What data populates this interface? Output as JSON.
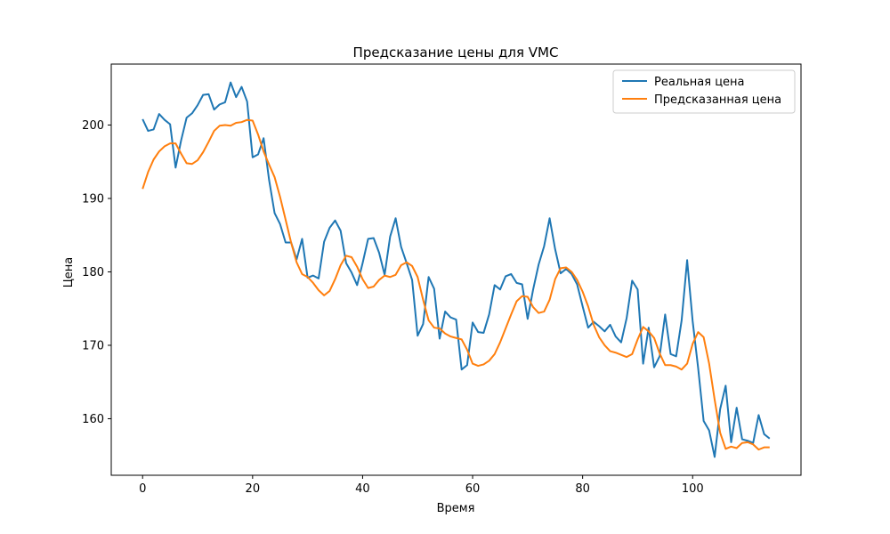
{
  "chart_data": {
    "type": "line",
    "title": "Предсказание цены для VMC",
    "xlabel": "Время",
    "ylabel": "Цена",
    "xlim": [
      -5.7,
      119.7
    ],
    "ylim": [
      152.3,
      208.3
    ],
    "xticks": [
      0,
      20,
      40,
      60,
      80,
      100
    ],
    "yticks": [
      160,
      170,
      180,
      190,
      200
    ],
    "grid": false,
    "legend_position": "top-right",
    "series": [
      {
        "name": "Реальная цена",
        "color": "#1f77b4",
        "values": [
          200.8,
          199.2,
          199.4,
          201.5,
          200.7,
          200.1,
          194.2,
          197.9,
          201.0,
          201.6,
          202.7,
          204.1,
          204.2,
          202.1,
          202.8,
          203.1,
          205.8,
          203.8,
          205.2,
          203.2,
          195.6,
          196.0,
          198.2,
          192.5,
          188.0,
          186.5,
          184.0,
          184.0,
          181.7,
          184.5,
          179.2,
          179.5,
          179.1,
          184.1,
          186.0,
          187.0,
          185.6,
          181.2,
          179.9,
          178.2,
          181.2,
          184.5,
          184.6,
          182.6,
          179.6,
          184.8,
          187.3,
          183.4,
          181.2,
          178.9,
          171.3,
          172.9,
          179.3,
          177.7,
          170.9,
          174.6,
          173.8,
          173.5,
          166.7,
          167.3,
          173.1,
          171.8,
          171.7,
          174.2,
          178.2,
          177.6,
          179.4,
          179.7,
          178.5,
          178.3,
          173.6,
          177.6,
          181.0,
          183.5,
          187.3,
          183.1,
          179.8,
          180.4,
          179.7,
          178.3,
          175.3,
          172.4,
          173.2,
          172.6,
          171.9,
          172.8,
          171.2,
          170.4,
          173.7,
          178.8,
          177.6,
          167.5,
          172.4,
          167.0,
          168.5,
          174.2,
          168.8,
          168.5,
          173.4,
          181.6,
          173.3,
          166.9,
          159.7,
          158.4,
          154.8,
          161.3,
          164.5,
          156.8,
          161.5,
          157.2,
          157.0,
          156.7,
          160.5,
          157.9,
          157.3
        ]
      },
      {
        "name": "Предсказанная цена",
        "color": "#ff7f0e",
        "values": [
          191.3,
          193.6,
          195.3,
          196.4,
          197.1,
          197.5,
          197.5,
          196.1,
          194.8,
          194.7,
          195.2,
          196.3,
          197.7,
          199.2,
          199.9,
          200.0,
          199.9,
          200.3,
          200.4,
          200.7,
          200.6,
          198.7,
          196.4,
          194.6,
          192.9,
          190.2,
          187.1,
          184.0,
          181.3,
          179.7,
          179.3,
          178.5,
          177.5,
          176.8,
          177.4,
          179.0,
          180.9,
          182.2,
          182.0,
          180.7,
          179.0,
          177.8,
          178.0,
          178.9,
          179.5,
          179.3,
          179.6,
          180.9,
          181.3,
          180.8,
          179.3,
          176.2,
          173.4,
          172.4,
          172.3,
          171.6,
          171.2,
          171.0,
          170.8,
          169.4,
          167.5,
          167.2,
          167.4,
          167.9,
          168.8,
          170.4,
          172.3,
          174.2,
          176.0,
          176.7,
          176.6,
          175.2,
          174.4,
          174.6,
          176.2,
          179.0,
          180.5,
          180.6,
          180.0,
          178.9,
          177.3,
          175.3,
          172.8,
          171.1,
          170.0,
          169.2,
          169.0,
          168.7,
          168.4,
          168.8,
          170.8,
          172.5,
          171.9,
          171.0,
          168.9,
          167.3,
          167.3,
          167.1,
          166.7,
          167.5,
          170.2,
          171.8,
          171.1,
          167.5,
          162.6,
          158.1,
          155.9,
          156.2,
          156.0,
          156.7,
          156.8,
          156.5,
          155.8,
          156.1,
          156.1
        ]
      }
    ]
  }
}
